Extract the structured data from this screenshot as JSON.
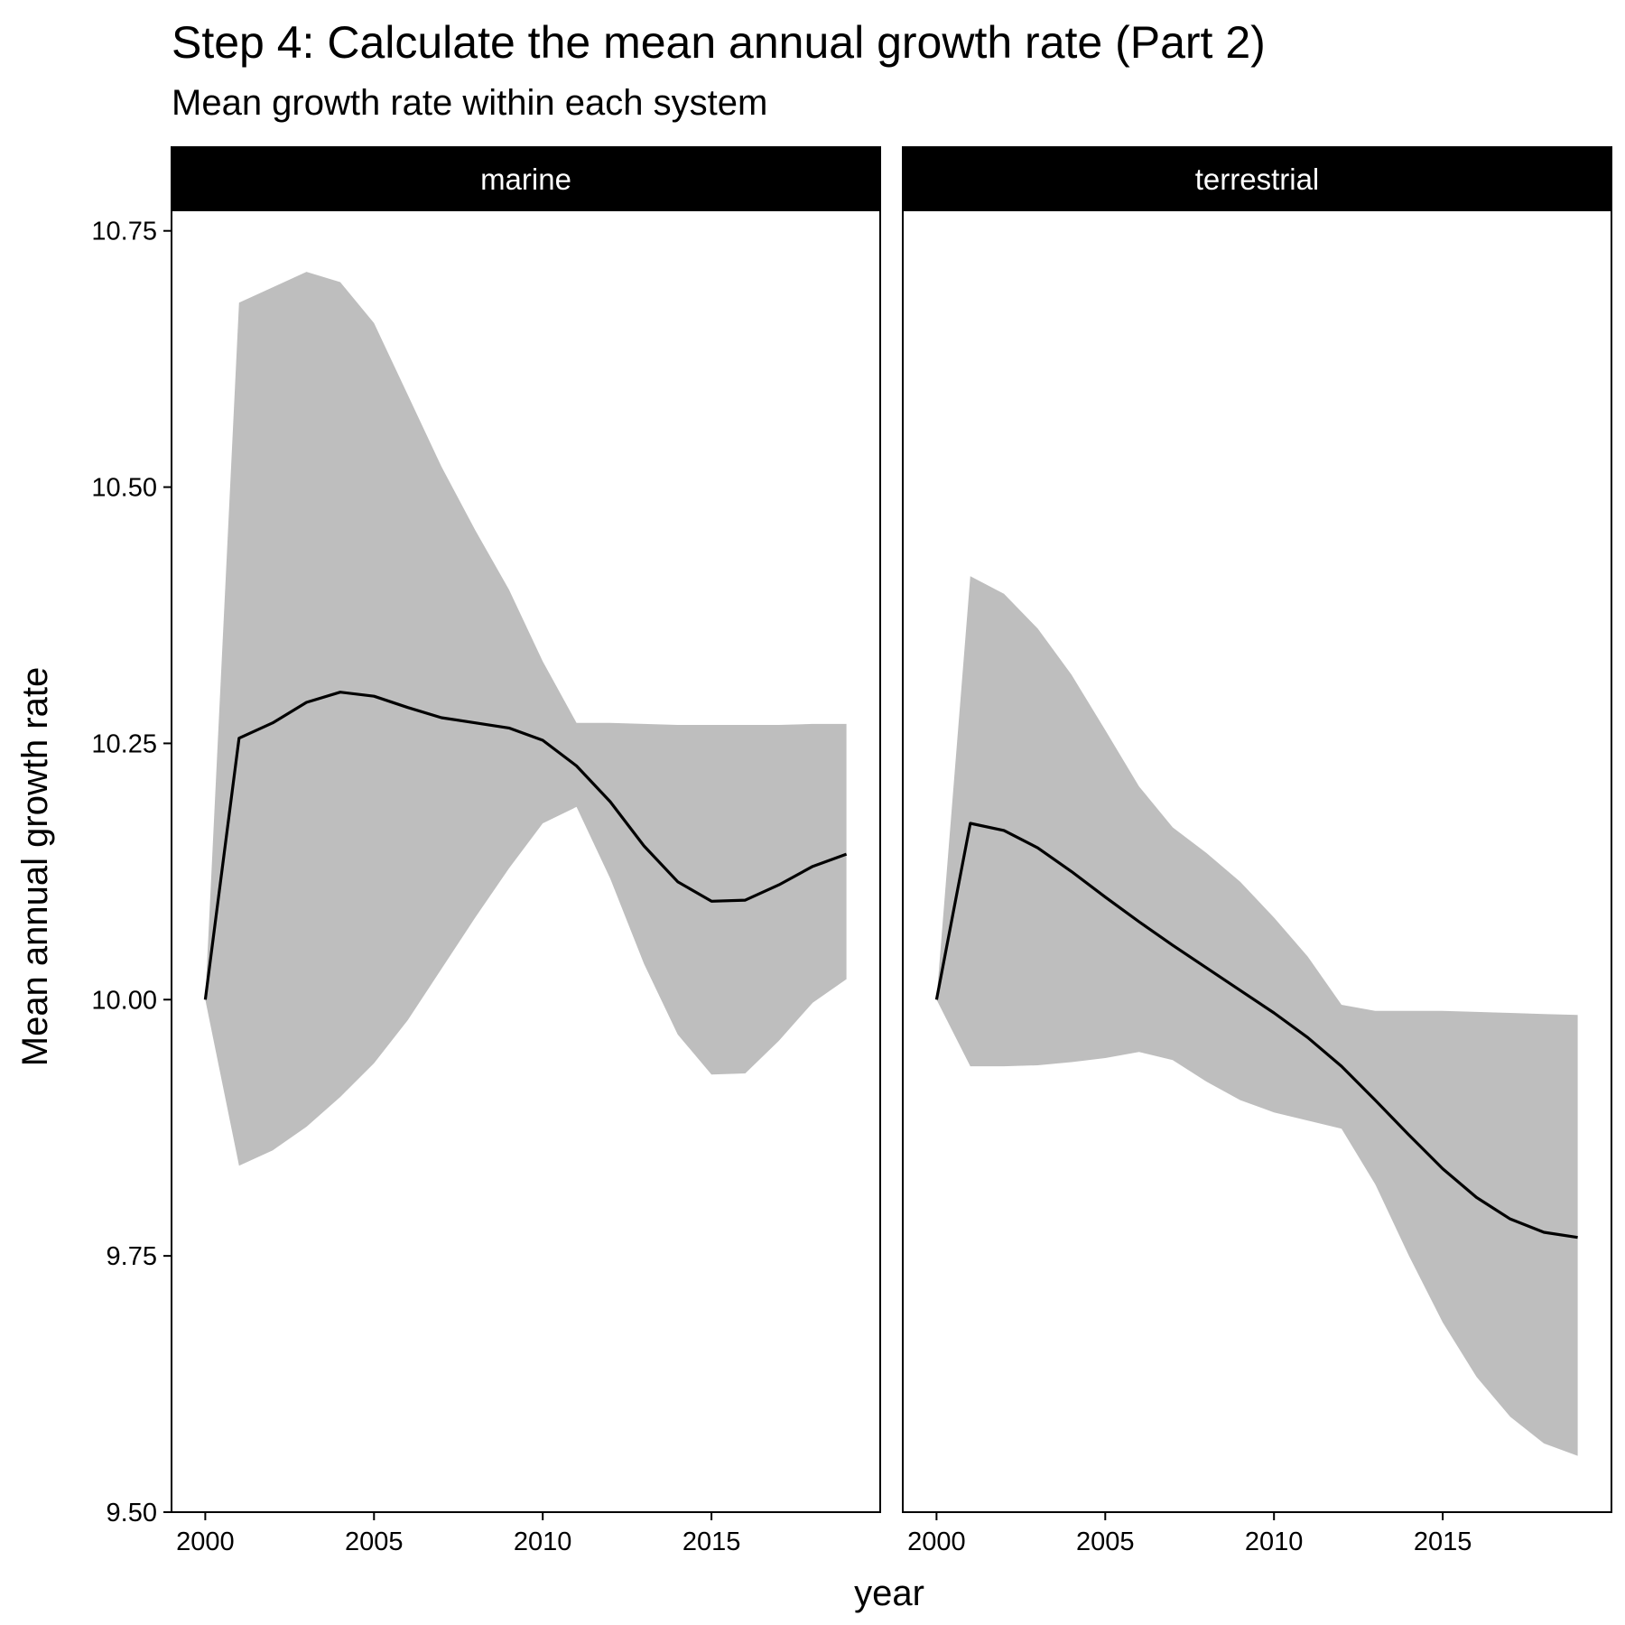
{
  "chart_data": {
    "type": "area",
    "title": "Step 4: Calculate the mean annual growth rate (Part 2)",
    "subtitle": "Mean growth rate within each system",
    "xlabel": "year",
    "ylabel": "Mean annual growth rate",
    "ylim": [
      9.5,
      10.77
    ],
    "xlim": [
      1999,
      2020
    ],
    "yticks": [
      "9.50",
      "9.75",
      "10.00",
      "10.25",
      "10.50",
      "10.75"
    ],
    "xticks": [
      "2000",
      "2005",
      "2010",
      "2015"
    ],
    "grid": false,
    "panels": [
      {
        "name": "marine",
        "x": [
          2000,
          2001,
          2002,
          2003,
          2004,
          2005,
          2006,
          2007,
          2008,
          2009,
          2010,
          2011,
          2012,
          2013,
          2014,
          2015,
          2016,
          2017,
          2018,
          2019
        ],
        "mean": [
          10.0,
          10.255,
          10.27,
          10.29,
          10.3,
          10.296,
          10.285,
          10.275,
          10.27,
          10.265,
          10.253,
          10.228,
          10.193,
          10.15,
          10.115,
          10.096,
          10.097,
          10.112,
          10.13,
          10.142
        ],
        "upper": [
          10.0,
          10.68,
          10.695,
          10.71,
          10.7,
          10.66,
          10.59,
          10.52,
          10.458,
          10.4,
          10.33,
          10.27,
          10.27,
          10.269,
          10.268,
          10.268,
          10.268,
          10.268,
          10.269,
          10.269
        ],
        "lower": [
          10.0,
          9.838,
          9.853,
          9.876,
          9.905,
          9.938,
          9.98,
          10.03,
          10.08,
          10.128,
          10.172,
          10.188,
          10.118,
          10.035,
          9.966,
          9.927,
          9.928,
          9.96,
          9.997,
          10.02
        ]
      },
      {
        "name": "terrestrial",
        "x": [
          2000,
          2001,
          2002,
          2003,
          2004,
          2005,
          2006,
          2007,
          2008,
          2009,
          2010,
          2011,
          2012,
          2013,
          2014,
          2015,
          2016,
          2017,
          2018,
          2019
        ],
        "mean": [
          10.0,
          10.172,
          10.165,
          10.148,
          10.125,
          10.1,
          10.076,
          10.053,
          10.031,
          10.009,
          9.987,
          9.963,
          9.935,
          9.902,
          9.868,
          9.835,
          9.807,
          9.786,
          9.773,
          9.768
        ],
        "upper": [
          10.0,
          10.413,
          10.396,
          10.362,
          10.317,
          10.263,
          10.208,
          10.168,
          10.143,
          10.115,
          10.08,
          10.042,
          9.995,
          9.989,
          9.989,
          9.989,
          9.988,
          9.987,
          9.986,
          9.985
        ],
        "lower": [
          10.0,
          9.935,
          9.935,
          9.936,
          9.939,
          9.943,
          9.949,
          9.941,
          9.92,
          9.902,
          9.89,
          9.882,
          9.874,
          9.82,
          9.75,
          9.685,
          9.632,
          9.593,
          9.567,
          9.555
        ]
      }
    ]
  }
}
